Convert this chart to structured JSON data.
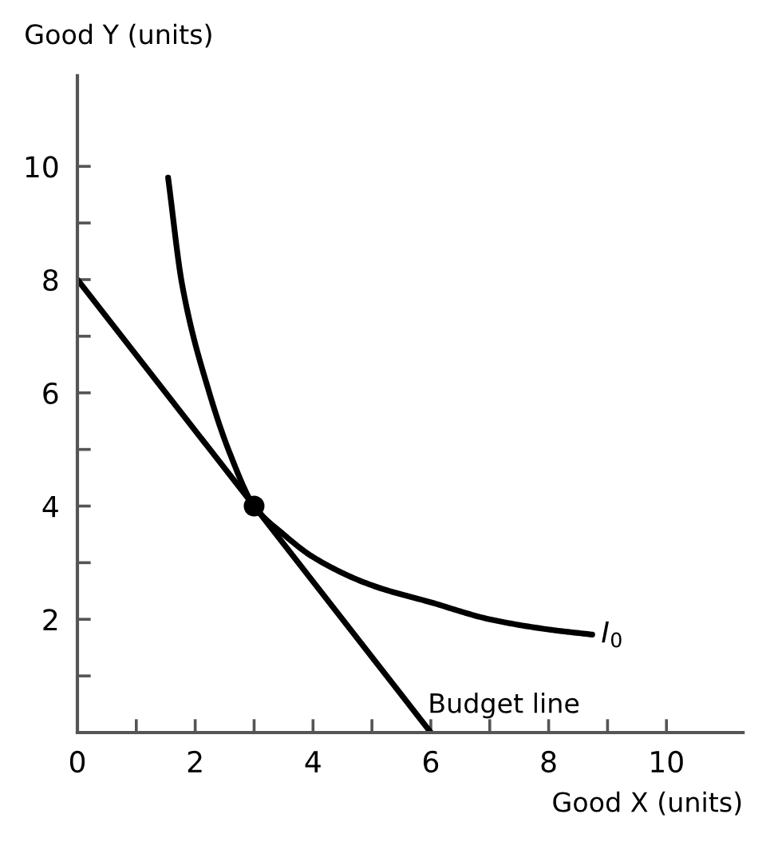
{
  "chart_data": {
    "type": "line",
    "xlabel": "Good X (units)",
    "ylabel": "Good Y (units)",
    "xlim": [
      0,
      11.3
    ],
    "ylim": [
      0,
      11.6
    ],
    "xticks": [
      0,
      {
        "value": 1,
        "label": null
      },
      2,
      {
        "value": 3,
        "label": null
      },
      4,
      {
        "value": 5,
        "label": null
      },
      6,
      {
        "value": 7,
        "label": null
      },
      8,
      {
        "value": 9,
        "label": null
      },
      10
    ],
    "yticks": [
      {
        "value": 1,
        "label": null
      },
      2,
      {
        "value": 3,
        "label": null
      },
      4,
      {
        "value": 5,
        "label": null
      },
      6,
      {
        "value": 7,
        "label": null
      },
      8,
      {
        "value": 9,
        "label": null
      },
      10
    ],
    "grid": false,
    "legend": false,
    "marker": "none",
    "line_style": "solid",
    "series": [
      {
        "name": "Budget line",
        "color": "#000000",
        "x": [
          0,
          6
        ],
        "values": [
          8,
          0
        ]
      },
      {
        "name": "I$_{0}$",
        "color": "#000000",
        "x": [
          1.54,
          1.78,
          2.24,
          2.6,
          3,
          3.5,
          4,
          5,
          6,
          7,
          8,
          8.74
        ],
        "values": [
          9.8,
          7.9,
          6.0,
          4.9,
          4,
          3.5,
          3.1,
          2.6,
          2.3,
          2.0,
          1.82,
          1.73
        ]
      },
      {
        "type": "scatter",
        "marker": "circle",
        "color": "#000000",
        "x": [
          3
        ],
        "values": [
          4
        ]
      }
    ]
  }
}
